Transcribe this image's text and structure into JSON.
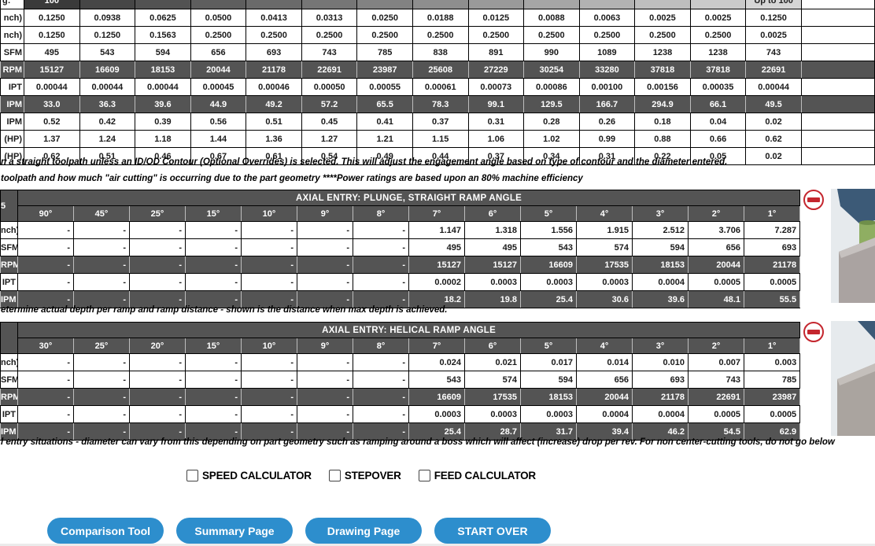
{
  "top_table": {
    "corner_label": "g:",
    "header_cells": [
      "100",
      "",
      "",
      "",
      "",
      "",
      "",
      "",
      "",
      "",
      "",
      "",
      "",
      "Up to 100"
    ],
    "rows": [
      {
        "label": "nch)",
        "dark": false,
        "values": [
          "0.1250",
          "0.0938",
          "0.0625",
          "0.0500",
          "0.0413",
          "0.0313",
          "0.0250",
          "0.0188",
          "0.0125",
          "0.0088",
          "0.0063",
          "0.0025",
          "0.0025",
          "0.1250"
        ]
      },
      {
        "label": "nch)",
        "dark": false,
        "values": [
          "0.1250",
          "0.1250",
          "0.1563",
          "0.2500",
          "0.2500",
          "0.2500",
          "0.2500",
          "0.2500",
          "0.2500",
          "0.2500",
          "0.2500",
          "0.2500",
          "0.2500",
          "0.0025"
        ]
      },
      {
        "label": "SFM",
        "dark": false,
        "values": [
          "495",
          "543",
          "594",
          "656",
          "693",
          "743",
          "785",
          "838",
          "891",
          "990",
          "1089",
          "1238",
          "1238",
          "743"
        ]
      },
      {
        "label": "RPM",
        "dark": true,
        "values": [
          "15127",
          "16609",
          "18153",
          "20044",
          "21178",
          "22691",
          "23987",
          "25608",
          "27229",
          "30254",
          "33280",
          "37818",
          "37818",
          "22691"
        ]
      },
      {
        "label": "IPT",
        "dark": false,
        "values": [
          "0.00044",
          "0.00044",
          "0.00044",
          "0.00045",
          "0.00046",
          "0.00050",
          "0.00055",
          "0.00061",
          "0.00073",
          "0.00086",
          "0.00100",
          "0.00156",
          "0.00035",
          "0.00044"
        ]
      },
      {
        "label": "IPM",
        "dark": true,
        "values": [
          "33.0",
          "36.3",
          "39.6",
          "44.9",
          "49.2",
          "57.2",
          "65.5",
          "78.3",
          "99.1",
          "129.5",
          "166.7",
          "294.9",
          "66.1",
          "49.5"
        ]
      },
      {
        "label": "IPM",
        "dark": false,
        "values": [
          "0.52",
          "0.42",
          "0.39",
          "0.56",
          "0.51",
          "0.45",
          "0.41",
          "0.37",
          "0.31",
          "0.28",
          "0.26",
          "0.18",
          "0.04",
          "0.02"
        ]
      },
      {
        "label": "(HP)",
        "dark": false,
        "values": [
          "1.37",
          "1.24",
          "1.18",
          "1.44",
          "1.36",
          "1.27",
          "1.21",
          "1.15",
          "1.06",
          "1.02",
          "0.99",
          "0.88",
          "0.66",
          "0.62"
        ]
      },
      {
        "label": "(HP)",
        "dark": false,
        "values": [
          "0.62",
          "0.51",
          "0.46",
          "0.67",
          "0.61",
          "0.54",
          "0.49",
          "0.44",
          "0.37",
          "0.34",
          "0.31",
          "0.22",
          "0.05",
          "0.02"
        ]
      }
    ]
  },
  "notes": {
    "note1": "n a straight toolpath unless an ID/OD Contour (Optional Overrides) is selected. This will adjust the engagement angle based on type of contour and the diameter entered.",
    "note2": "toolpath and how much \"air cutting\" is occurring due to the part geometry ****Power ratings are based upon an 80% machine efficiency",
    "note3": "etermine actual depth per ramp and ramp distance - shown is the distance when max depth is achieved.",
    "note4": "l entry situations - diameter can vary from this depending on part geometry such as ramping around a boss which will affect (increase) drop per rev. For non center-cutting tools, do not go below"
  },
  "plunge_table": {
    "title": "AXIAL ENTRY: PLUNGE, STRAIGHT RAMP ANGLE",
    "corner_label": "5",
    "angles": [
      "90°",
      "45°",
      "25°",
      "15°",
      "10°",
      "9°",
      "8°",
      "7°",
      "6°",
      "5°",
      "4°",
      "3°",
      "2°",
      "1°"
    ],
    "rows": [
      {
        "label": "nch)",
        "dark": false,
        "values": [
          "-",
          "-",
          "-",
          "-",
          "-",
          "-",
          "-",
          "1.147",
          "1.318",
          "1.556",
          "1.915",
          "2.512",
          "3.706",
          "7.287"
        ]
      },
      {
        "label": "SFM",
        "dark": false,
        "values": [
          "-",
          "-",
          "-",
          "-",
          "-",
          "-",
          "-",
          "495",
          "495",
          "543",
          "574",
          "594",
          "656",
          "693"
        ]
      },
      {
        "label": "RPM",
        "dark": true,
        "values": [
          "-",
          "-",
          "-",
          "-",
          "-",
          "-",
          "-",
          "15127",
          "15127",
          "16609",
          "17535",
          "18153",
          "20044",
          "21178"
        ]
      },
      {
        "label": "IPT",
        "dark": false,
        "values": [
          "-",
          "-",
          "-",
          "-",
          "-",
          "-",
          "-",
          "0.0002",
          "0.0003",
          "0.0003",
          "0.0003",
          "0.0004",
          "0.0005",
          "0.0005"
        ]
      },
      {
        "label": "IPM",
        "dark": true,
        "values": [
          "-",
          "-",
          "-",
          "-",
          "-",
          "-",
          "-",
          "18.2",
          "19.8",
          "25.4",
          "30.6",
          "39.6",
          "48.1",
          "55.5"
        ]
      }
    ]
  },
  "helical_table": {
    "title": "AXIAL ENTRY: HELICAL RAMP ANGLE",
    "corner_label": "",
    "angles": [
      "30°",
      "25°",
      "20°",
      "15°",
      "10°",
      "9°",
      "8°",
      "7°",
      "6°",
      "5°",
      "4°",
      "3°",
      "2°",
      "1°"
    ],
    "rows": [
      {
        "label": "nch)",
        "dark": false,
        "values": [
          "-",
          "-",
          "-",
          "-",
          "-",
          "-",
          "-",
          "0.024",
          "0.021",
          "0.017",
          "0.014",
          "0.010",
          "0.007",
          "0.003"
        ]
      },
      {
        "label": "SFM",
        "dark": false,
        "values": [
          "-",
          "-",
          "-",
          "-",
          "-",
          "-",
          "-",
          "543",
          "574",
          "594",
          "656",
          "693",
          "743",
          "785"
        ]
      },
      {
        "label": "RPM",
        "dark": true,
        "values": [
          "-",
          "-",
          "-",
          "-",
          "-",
          "-",
          "-",
          "16609",
          "17535",
          "18153",
          "20044",
          "21178",
          "22691",
          "23987"
        ]
      },
      {
        "label": "IPT",
        "dark": false,
        "values": [
          "-",
          "-",
          "-",
          "-",
          "-",
          "-",
          "-",
          "0.0003",
          "0.0003",
          "0.0003",
          "0.0004",
          "0.0004",
          "0.0005",
          "0.0005"
        ]
      },
      {
        "label": "IPM",
        "dark": true,
        "values": [
          "-",
          "-",
          "-",
          "-",
          "-",
          "-",
          "-",
          "25.4",
          "28.7",
          "31.7",
          "39.4",
          "46.2",
          "54.5",
          "62.9"
        ]
      }
    ]
  },
  "icons": {
    "remove_icon": "minus-circle"
  },
  "checkboxes": [
    {
      "label": "SPEED CALCULATOR",
      "checked": false
    },
    {
      "label": "STEPOVER",
      "checked": false
    },
    {
      "label": "FEED CALCULATOR",
      "checked": false
    }
  ],
  "buttons": [
    "Comparison Tool",
    "Summary Page",
    "Drawing Page",
    "START OVER"
  ],
  "colors": {
    "accent_blue": "#2d8ecd",
    "dark_row": "#545454",
    "alert_red": "#c4262e"
  }
}
